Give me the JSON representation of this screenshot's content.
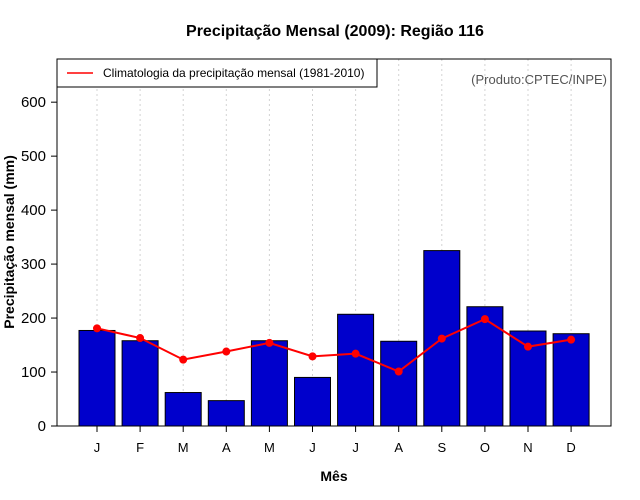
{
  "chart_data": {
    "type": "bar",
    "title": "Precipitação Mensal (2009): Região 116",
    "xlabel": "Mês",
    "ylabel": "Precipitação mensal (mm)",
    "categories": [
      "J",
      "F",
      "M",
      "A",
      "M",
      "J",
      "J",
      "A",
      "S",
      "O",
      "N",
      "D"
    ],
    "ylim": [
      0,
      680
    ],
    "yticks": [
      0,
      100,
      200,
      300,
      400,
      500,
      600
    ],
    "grid": "vertical dotted",
    "legend_position": "top-left",
    "credit": "(Produto:CPTEC/INPE)",
    "series": [
      {
        "name": "Precipitação mensal (2009)",
        "kind": "bar",
        "color": "#0000CC",
        "values": [
          177,
          158,
          62,
          47,
          158,
          90,
          207,
          157,
          325,
          221,
          176,
          171
        ]
      },
      {
        "name": "Climatologia da precipitação mensal (1981-2010)",
        "kind": "line",
        "color": "#FF0000",
        "values": [
          181,
          163,
          123,
          138,
          154,
          129,
          134,
          101,
          162,
          198,
          147,
          160
        ]
      }
    ]
  }
}
